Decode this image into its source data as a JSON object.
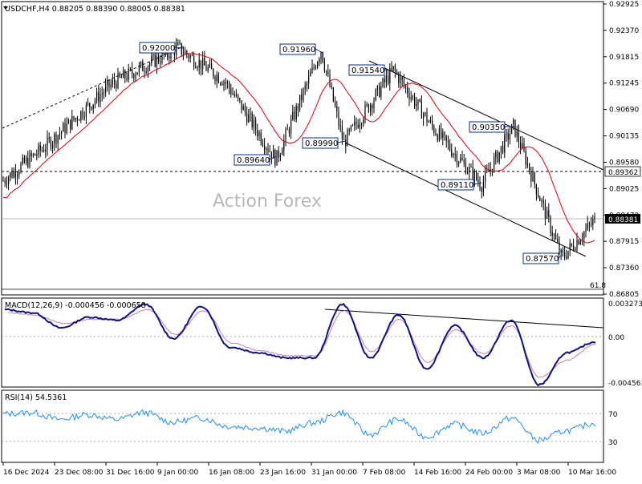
{
  "main_chart": {
    "header": "USDCHF,H4  0.88205 0.88390 0.88005 0.88381",
    "watermark": "Action Forex",
    "price_axis": [
      "0.92925",
      "0.92370",
      "0.91815",
      "0.91245",
      "0.90690",
      "0.90135",
      "0.89580",
      "0.89025",
      "0.88470",
      "0.87915",
      "0.87360",
      "0.86805"
    ],
    "current_price": "0.88381",
    "level_line": "0.89362",
    "fib_label": "61.8",
    "price_labels": [
      {
        "text": "0.92000",
        "kind": "high"
      },
      {
        "text": "0.91960",
        "kind": "high"
      },
      {
        "text": "0.91540",
        "kind": "high"
      },
      {
        "text": "0.90350",
        "kind": "high"
      },
      {
        "text": "0.89640",
        "kind": "low"
      },
      {
        "text": "0.89990",
        "kind": "low"
      },
      {
        "text": "0.89110",
        "kind": "low"
      },
      {
        "text": "0.87570",
        "kind": "low"
      }
    ]
  },
  "macd_panel": {
    "header": "MACD(12,26,9) -0.000456 -0.000658",
    "axis": [
      "0.003273",
      "0.00",
      "-0.004561"
    ]
  },
  "rsi_panel": {
    "header": "RSI(14) 54.5361",
    "axis": [
      "70",
      "30"
    ]
  },
  "time_axis": [
    "16 Dec 2024",
    "23 Dec 08:00",
    "31 Dec 16:00",
    "9 Jan 00:00",
    "16 Jan 08:00",
    "23 Jan 16:00",
    "31 Jan 00:00",
    "7 Feb 08:00",
    "14 Feb 16:00",
    "24 Feb 00:00",
    "3 Mar 08:00",
    "10 Mar 16:00"
  ],
  "chart_data": [
    {
      "type": "candlestick",
      "title": "USDCHF,H4",
      "ylim": [
        0.86805,
        0.92925
      ],
      "key_points": [
        {
          "x": "16 Dec 2024",
          "y": 0.892
        },
        {
          "x": "23 Dec 08:00",
          "y": 0.899
        },
        {
          "x": "31 Dec 16:00",
          "y": 0.9125
        },
        {
          "x": "9 Jan 00:00",
          "y": 0.92
        },
        {
          "x": "16 Jan 08:00",
          "y": 0.913
        },
        {
          "x": "23 Jan 16:00",
          "y": 0.8964
        },
        {
          "x": "31 Jan 00:00",
          "y": 0.9196
        },
        {
          "x": "31 Jan 08:00",
          "y": 0.8999
        },
        {
          "x": "7 Feb 08:00",
          "y": 0.9154
        },
        {
          "x": "14 Feb 16:00",
          "y": 0.903
        },
        {
          "x": "24 Feb 00:00",
          "y": 0.8911
        },
        {
          "x": "3 Mar 08:00",
          "y": 0.9035
        },
        {
          "x": "10 Mar 16:00",
          "y": 0.8757
        },
        {
          "x": "end",
          "y": 0.88381
        }
      ],
      "moving_average_color": "#e0000f",
      "candle_color": "#000000",
      "levels": [
        0.89362,
        0.88381
      ]
    },
    {
      "type": "line",
      "title": "MACD(12,26,9)",
      "ylim": [
        -0.004561,
        0.003273
      ],
      "series": [
        {
          "values": [
            0.0025,
            0.0022,
            0.0008,
            0.0018,
            0.0015,
            0.003,
            -0.0002,
            0.0028,
            -0.001,
            -0.0015,
            -0.002,
            -0.002,
            0.003,
            -0.002,
            0.002,
            -0.003,
            0.001,
            -0.002,
            0.0015,
            -0.0045,
            -0.0015,
            -0.0005
          ]
        },
        {
          "values": [
            0.0022,
            0.002,
            0.0012,
            0.0016,
            0.0016,
            0.0025,
            0.0002,
            0.0024,
            -0.0006,
            -0.0013,
            -0.0018,
            -0.0018,
            0.0024,
            -0.0014,
            0.0016,
            -0.0024,
            0.0006,
            -0.0016,
            0.001,
            -0.0038,
            -0.0022,
            -0.0007
          ]
        }
      ]
    },
    {
      "type": "line",
      "title": "RSI(14)",
      "ylim": [
        0,
        100
      ],
      "series": [
        {
          "values": [
            68,
            70,
            60,
            67,
            60,
            70,
            56,
            62,
            50,
            48,
            43,
            55,
            70,
            38,
            60,
            35,
            53,
            40,
            62,
            30,
            44,
            54.5
          ]
        }
      ]
    }
  ]
}
